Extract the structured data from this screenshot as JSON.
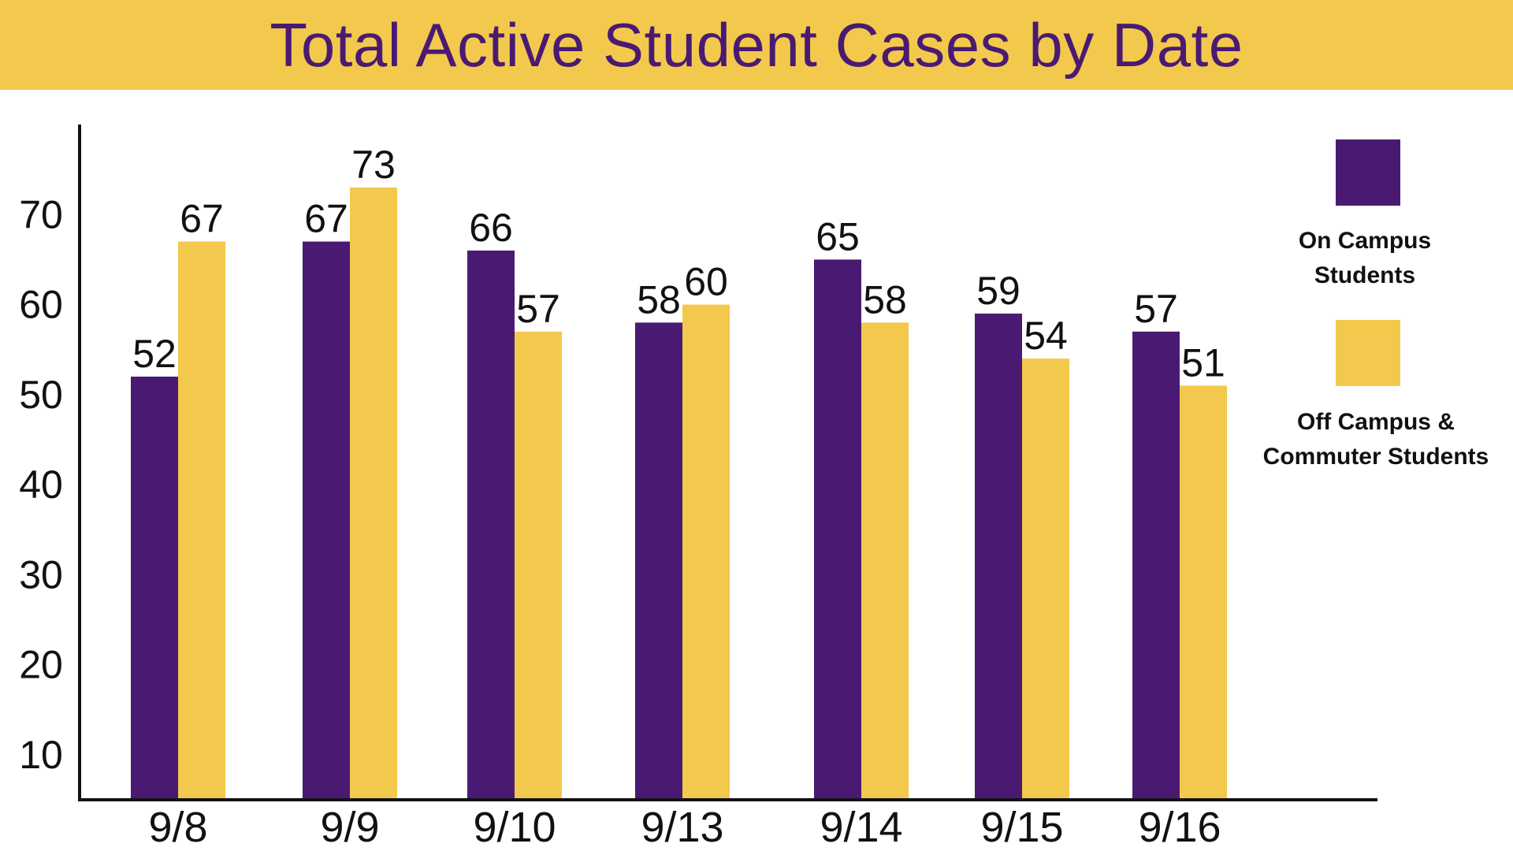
{
  "title": "Total Active Student Cases by Date",
  "colors": {
    "on_campus": "#4A1A73",
    "off_campus": "#F2C94C",
    "title_band": "#F2C94C",
    "title_text": "#4A1A73",
    "axis": "#111111",
    "text": "#111111"
  },
  "legend": {
    "on_campus_line1": "On Campus",
    "on_campus_line2": "Students",
    "off_campus_line1": "Off Campus &",
    "off_campus_line2": "Commuter Students"
  },
  "chart_data": {
    "type": "bar",
    "title": "Total Active Student Cases by Date",
    "categories": [
      "9/8",
      "9/9",
      "9/10",
      "9/13",
      "9/14",
      "9/15",
      "9/16"
    ],
    "series": [
      {
        "name": "On Campus Students",
        "values": [
          52,
          67,
          66,
          58,
          65,
          59,
          57
        ]
      },
      {
        "name": "Off Campus & Commuter Students",
        "values": [
          67,
          73,
          57,
          60,
          58,
          54,
          51
        ]
      }
    ],
    "yticks": [
      10,
      20,
      30,
      40,
      50,
      60,
      70
    ],
    "ylim": [
      5,
      80
    ],
    "xlabel": "",
    "ylabel": "",
    "grid": false,
    "legend_position": "right"
  }
}
